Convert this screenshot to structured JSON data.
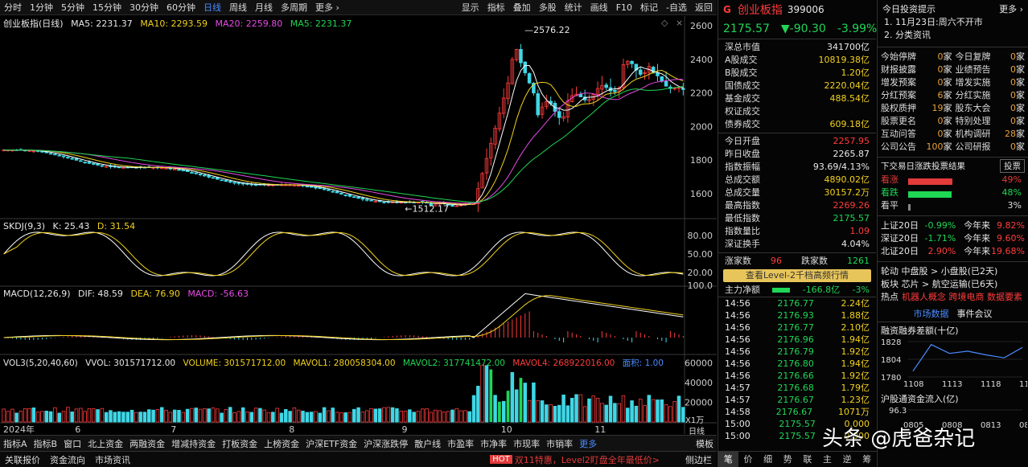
{
  "toolbar": {
    "left": [
      "分时",
      "1分钟",
      "5分钟",
      "15分钟",
      "30分钟",
      "60分钟",
      "日线",
      "周线",
      "月线",
      "多周期",
      "更多 ›"
    ],
    "right": [
      "显示",
      "指标",
      "叠加",
      "多股",
      "统计",
      "画线",
      "F10",
      "标记",
      "-自选",
      "返回"
    ]
  },
  "main_header": {
    "name": "创业板指(日线)",
    "ma5": "MA5: 2231.37",
    "ma10": "MA10: 2293.59",
    "ma20": "MA20: 2259.80",
    "ma5b": "MA5: 2231.37"
  },
  "price_axis": [
    "2600",
    "2400",
    "2200",
    "2000",
    "1800",
    "1600"
  ],
  "high_label": "2576.22",
  "low_label": "1512.17",
  "kdj_header": {
    "name": "SKDJ(9,3)",
    "k": "K: 25.43",
    "d": "D: 31.54"
  },
  "kdj_axis": [
    "80.00",
    "50.00",
    "20.00"
  ],
  "macd_header": {
    "name": "MACD(12,26,9)",
    "dif": "DIF: 48.59",
    "dea": "DEA: 76.90",
    "macd": "MACD: -56.63"
  },
  "macd_axis": [
    "100.0"
  ],
  "vol_header": {
    "name": "VOL3(5,20,40,60)",
    "vvol": "VVOL: 301571712.00",
    "volume": "VOLUME: 301571712.00",
    "mavol1": "MAVOL1: 280058304.00",
    "mavol2": "MAVOL2: 317741472.00",
    "mavol4": "MAVOL4: 268922016.00",
    "extra": "面积: 1.00"
  },
  "vol_axis": [
    "60000",
    "40000",
    "20000"
  ],
  "vol_unit": "X1万",
  "x_axis": [
    {
      "label": "2024年",
      "pos": 0.0
    },
    {
      "label": "6",
      "pos": 0.105
    },
    {
      "label": "7",
      "pos": 0.245
    },
    {
      "label": "8",
      "pos": 0.418
    },
    {
      "label": "9",
      "pos": 0.583
    },
    {
      "label": "10",
      "pos": 0.728
    },
    {
      "label": "11",
      "pos": 0.865
    }
  ],
  "right_side_tag": "日线",
  "bottom_tabs": [
    "指标A",
    "指标B",
    "窗口",
    "北上资金",
    "两融资金",
    "增减持资金",
    "打板资金",
    "上榜资金",
    "沪深ETF资金",
    "沪深涨跌停",
    "散户线",
    "市盈率",
    "市净率",
    "市现率",
    "市销率",
    "更多"
  ],
  "bottom_right": "模板",
  "status": [
    "关联报价",
    "资金流向",
    "市场资讯"
  ],
  "hot_text": "双11特惠，Level2盯盘全年最低价>",
  "hot_badge": "HOT",
  "side_bar_btn": "侧边栏",
  "quote": {
    "badge": "G",
    "name": "创业板指",
    "code": "399006",
    "price": "2175.57",
    "change": "▼-90.30",
    "pct": "-3.99%",
    "rows1": [
      {
        "l": "深总市值",
        "v": "341700亿",
        "c": "wht"
      },
      {
        "l": "A股成交",
        "v": "10819.38亿",
        "c": "yel"
      },
      {
        "l": "B股成交",
        "v": "1.20亿",
        "c": "yel"
      },
      {
        "l": "国债成交",
        "v": "2220.04亿",
        "c": "yel"
      },
      {
        "l": "基金成交",
        "v": "488.54亿",
        "c": "yel"
      },
      {
        "l": "权证成交",
        "v": "",
        "c": "yel"
      },
      {
        "l": "债券成交",
        "v": "609.18亿",
        "c": "yel"
      }
    ],
    "rows2": [
      {
        "l": "今日开盘",
        "v": "2257.95",
        "c": "red"
      },
      {
        "l": "昨日收盘",
        "v": "2265.87",
        "c": "wht"
      },
      {
        "l": "指数振幅",
        "v": "93.69/4.13%",
        "c": "wht"
      },
      {
        "l": "总成交额",
        "v": "4890.02亿",
        "c": "yel"
      },
      {
        "l": "总成交量",
        "v": "30157.2万",
        "c": "yel"
      },
      {
        "l": "最高指数",
        "v": "2269.26",
        "c": "red"
      },
      {
        "l": "最低指数",
        "v": "2175.57",
        "c": "grn"
      },
      {
        "l": "指数量比",
        "v": "1.09",
        "c": "red"
      },
      {
        "l": "深证换手",
        "v": "4.04%",
        "c": "wht"
      }
    ],
    "up_label": "涨家数",
    "up_val": "96",
    "down_label": "跌家数",
    "down_val": "1261",
    "level2": "查看Level-2千档高频行情",
    "flow_label": "主力净额",
    "flow_val": "-166.8亿",
    "flow_pct": "-3%",
    "ticks": [
      {
        "t": "14:56",
        "p": "2176.77",
        "v": "2.24亿"
      },
      {
        "t": "14:56",
        "p": "2176.93",
        "v": "1.88亿"
      },
      {
        "t": "14:56",
        "p": "2176.77",
        "v": "2.10亿"
      },
      {
        "t": "14:56",
        "p": "2176.96",
        "v": "1.94亿"
      },
      {
        "t": "14:56",
        "p": "2176.79",
        "v": "1.92亿"
      },
      {
        "t": "14:56",
        "p": "2176.80",
        "v": "1.94亿"
      },
      {
        "t": "14:56",
        "p": "2176.66",
        "v": "1.92亿"
      },
      {
        "t": "14:57",
        "p": "2176.68",
        "v": "1.79亿"
      },
      {
        "t": "14:57",
        "p": "2176.67",
        "v": "1.23亿"
      },
      {
        "t": "14:58",
        "p": "2176.67",
        "v": "1071万"
      },
      {
        "t": "15:00",
        "p": "2175.57",
        "v": "0.000"
      },
      {
        "t": "15:00",
        "p": "2175.57",
        "v": "0.000"
      }
    ],
    "bottom_tabs": [
      "笔",
      "价",
      "细",
      "势",
      "联",
      "主",
      "逆",
      "筹"
    ]
  },
  "side": {
    "title": "今日投资提示",
    "more": "更多 ›",
    "tips": [
      "1. 11月23日:周六不开市",
      "2. 分类资讯"
    ],
    "grid": [
      [
        "今始停牌",
        "0家",
        "今日复牌",
        "0家"
      ],
      [
        "财报披露",
        "0家",
        "业绩预告",
        "0家"
      ],
      [
        "增发预案",
        "0家",
        "增发实施",
        "0家"
      ],
      [
        "分红预案",
        "6家",
        "分红实施",
        "0家"
      ],
      [
        "股权质押",
        "19家",
        "股东大会",
        "0家"
      ],
      [
        "股票更名",
        "0家",
        "特别处理",
        "0家"
      ],
      [
        "互动问答",
        "0家",
        "机构调研",
        "28家"
      ],
      [
        "公司公告",
        "100家",
        "公司研报",
        "0家"
      ]
    ],
    "vote_title": "下交易日涨跌投票结果",
    "vote_btn": "投票",
    "votes": [
      {
        "l": "看涨",
        "pct": "49%",
        "frac": 0.49,
        "color": "#e33a3a"
      },
      {
        "l": "看跌",
        "pct": "48%",
        "frac": 0.48,
        "color": "#1fd655"
      },
      {
        "l": "看平",
        "pct": "3%",
        "frac": 0.03,
        "color": "#888"
      }
    ],
    "idx": [
      {
        "n": "上证20日",
        "v": "-0.99%",
        "vc": "grn",
        "y": "今年来",
        "yv": "9.82%"
      },
      {
        "n": "深证20日",
        "v": "-1.71%",
        "vc": "grn",
        "y": "今年来",
        "yv": "9.60%"
      },
      {
        "n": "北证20日",
        "v": "2.90%",
        "vc": "red",
        "y": "今年来",
        "yv": "19.68%"
      }
    ],
    "rotation": [
      "轮动 中盘股 > 小盘股(已2天)",
      "板块 芯片 > 航空运输(已6天)"
    ],
    "hot_prefix": "热点",
    "hot_items": "机器人概念 跨境电商 数据要素",
    "tabs": [
      "市场数据",
      "事件会议"
    ],
    "margin_title": "融资融券差额(十亿)",
    "margin_y": [
      "1828",
      "1804",
      "1780"
    ],
    "margin_x": [
      "1108",
      "1113",
      "1118",
      "1121"
    ],
    "margin_values": [
      1788,
      1824,
      1812,
      1815,
      1810,
      1806,
      1820
    ],
    "north_title": "沪股通资金流入(亿)",
    "north_y": [
      "96.3"
    ],
    "north_x": [
      "0805",
      "0808",
      "0813",
      "0816"
    ]
  },
  "watermark": "头条 @虎爸杂记"
}
